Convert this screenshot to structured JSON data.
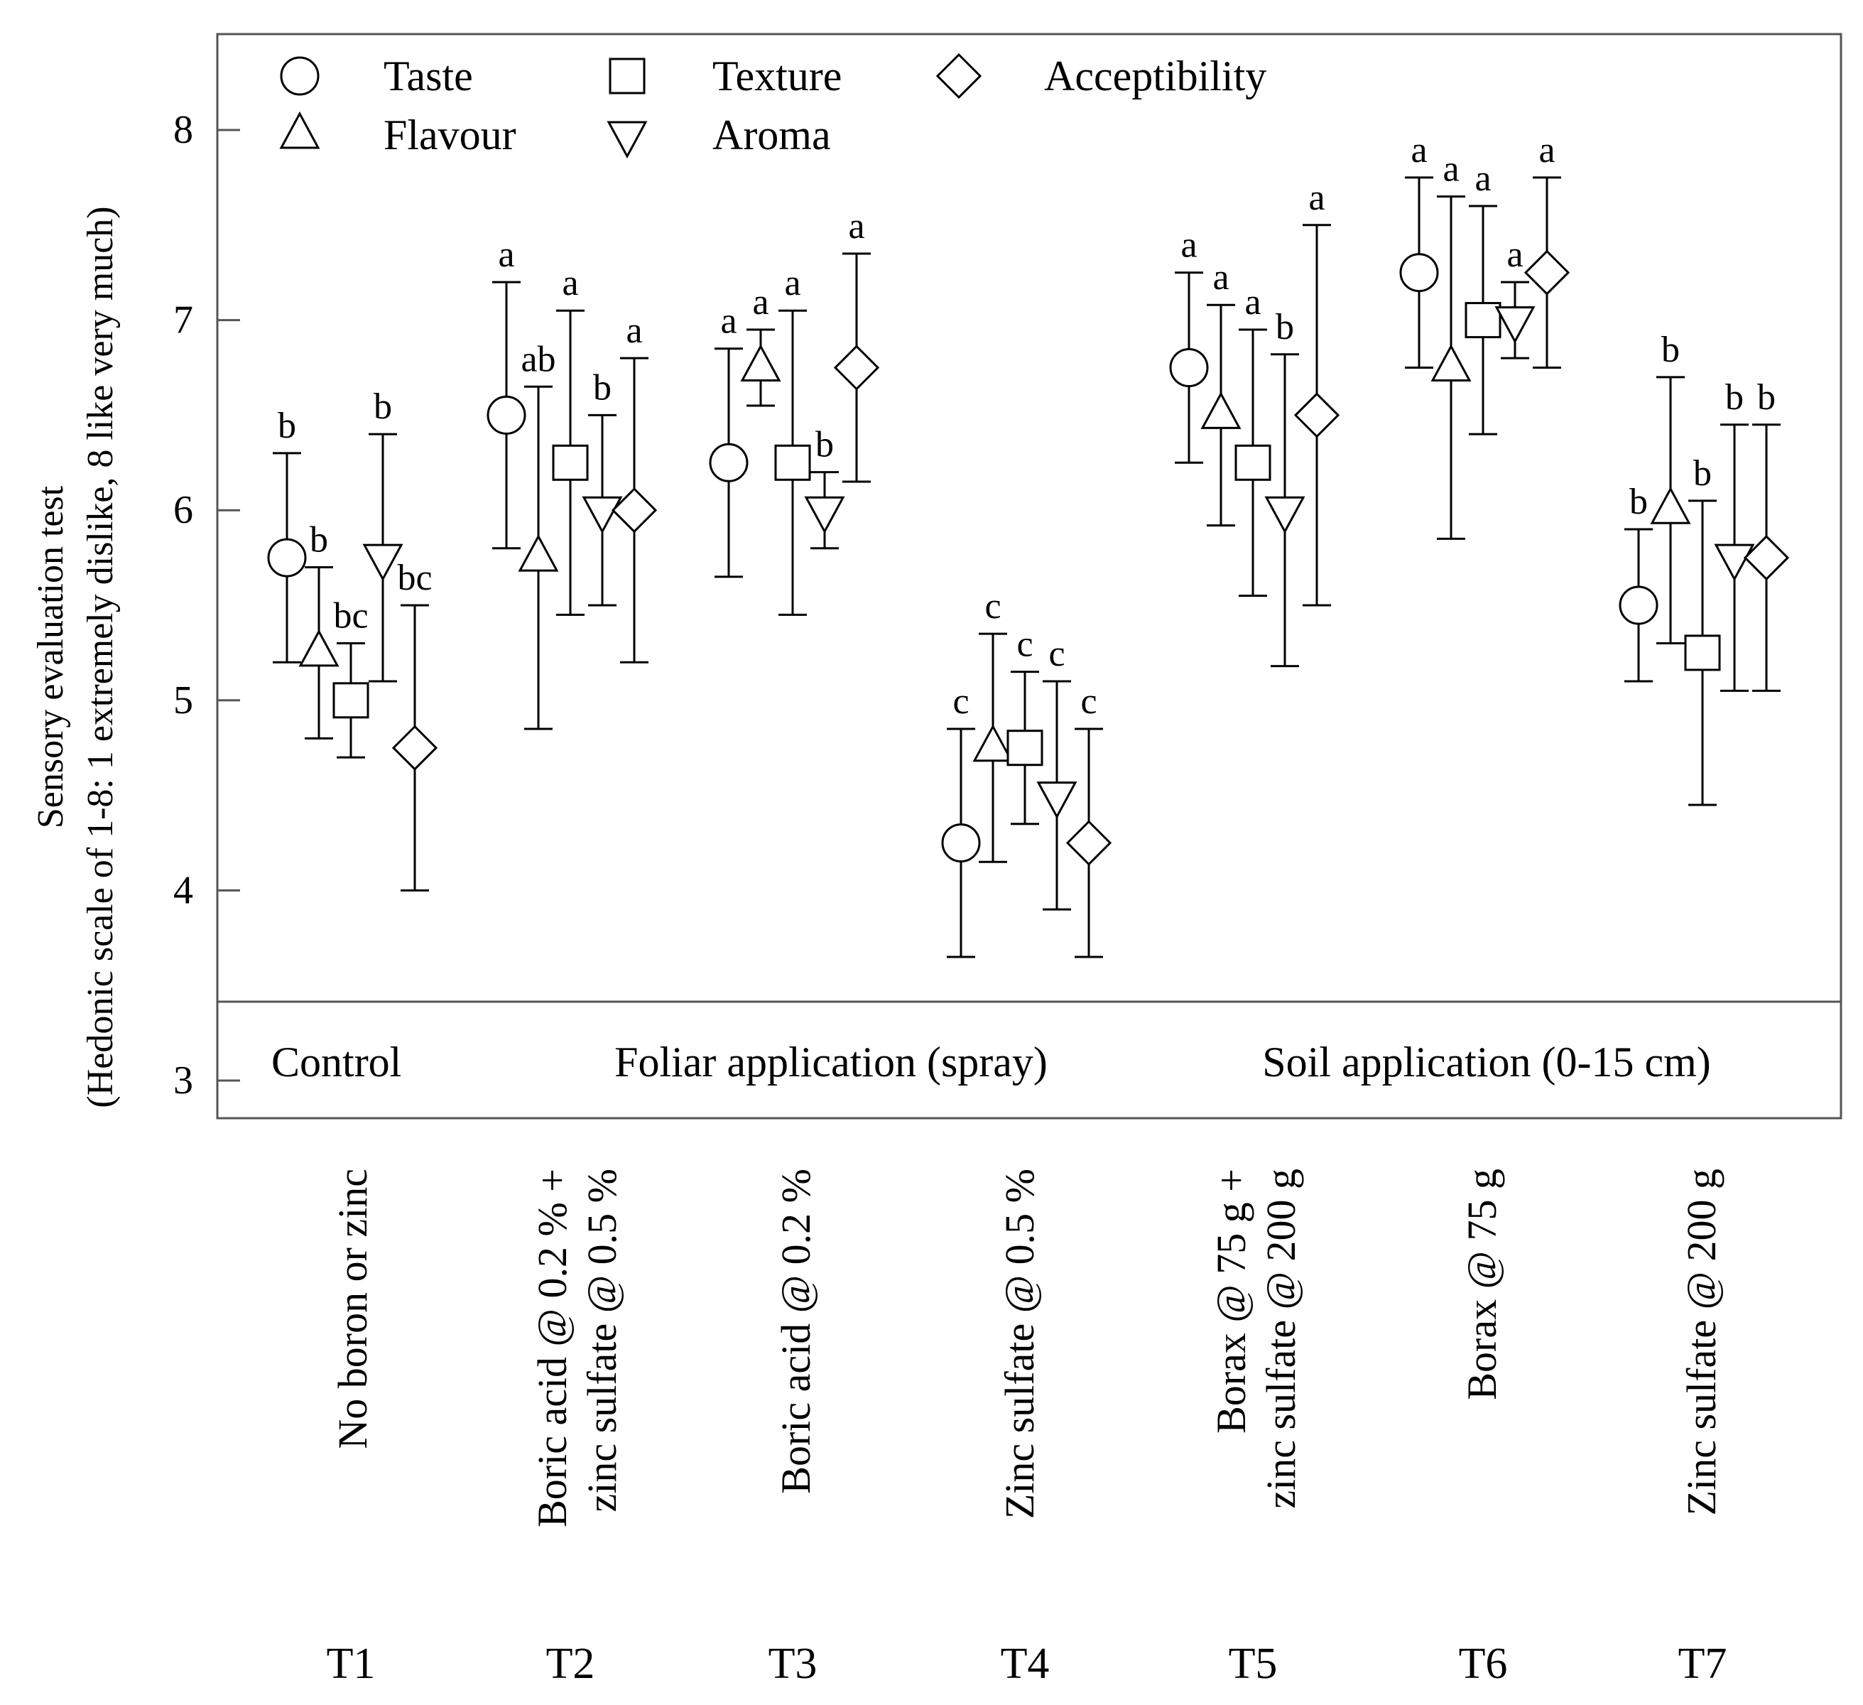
{
  "chart_data": {
    "type": "scatter",
    "subtype": "grouped point plot with error bars and significance letters",
    "ylabel_lines": [
      "Sensory evaluation test",
      "(Hedonic scale of 1-8: 1 extremely dislike, 8 like very much)"
    ],
    "ylim": [
      3.0,
      8.5
    ],
    "yticks": [
      3,
      4,
      5,
      6,
      7,
      8
    ],
    "legend_position": "top-left",
    "series": [
      {
        "name": "Taste",
        "marker": "circle"
      },
      {
        "name": "Flavour",
        "marker": "triangle-up"
      },
      {
        "name": "Texture",
        "marker": "square"
      },
      {
        "name": "Aroma",
        "marker": "triangle-down"
      },
      {
        "name": "Acceptibility",
        "marker": "diamond"
      }
    ],
    "groups": [
      {
        "text": "Control",
        "treatments": [
          "T1"
        ]
      },
      {
        "text": "Foliar application (spray)",
        "treatments": [
          "T2",
          "T3",
          "T4"
        ]
      },
      {
        "text": "Soil application (0-15 cm)",
        "treatments": [
          "T5",
          "T6",
          "T7"
        ]
      }
    ],
    "treatments": [
      {
        "id": "T1",
        "label_lines": [
          "No boron or zinc"
        ],
        "points": [
          {
            "mean": 5.75,
            "low": 5.2,
            "high": 6.3,
            "letter": "b"
          },
          {
            "mean": 5.25,
            "low": 4.8,
            "high": 5.7,
            "letter": "b"
          },
          {
            "mean": 5.0,
            "low": 4.7,
            "high": 5.3,
            "letter": "bc"
          },
          {
            "mean": 5.75,
            "low": 5.1,
            "high": 6.4,
            "letter": "b"
          },
          {
            "mean": 4.75,
            "low": 4.0,
            "high": 5.5,
            "letter": "bc"
          }
        ]
      },
      {
        "id": "T2",
        "label_lines": [
          "Boric acid @ 0.2 % +",
          "zinc sulfate @ 0.5 %"
        ],
        "points": [
          {
            "mean": 6.5,
            "low": 5.8,
            "high": 7.2,
            "letter": "a"
          },
          {
            "mean": 5.75,
            "low": 4.85,
            "high": 6.65,
            "letter": "ab"
          },
          {
            "mean": 6.25,
            "low": 5.45,
            "high": 7.05,
            "letter": "a"
          },
          {
            "mean": 6.0,
            "low": 5.5,
            "high": 6.5,
            "letter": "b"
          },
          {
            "mean": 6.0,
            "low": 5.2,
            "high": 6.8,
            "letter": "a"
          }
        ]
      },
      {
        "id": "T3",
        "label_lines": [
          "Boric acid @ 0.2 %"
        ],
        "points": [
          {
            "mean": 6.25,
            "low": 5.65,
            "high": 6.85,
            "letter": "a"
          },
          {
            "mean": 6.75,
            "low": 6.55,
            "high": 6.95,
            "letter": "a"
          },
          {
            "mean": 6.25,
            "low": 5.45,
            "high": 7.05,
            "letter": "a"
          },
          {
            "mean": 6.0,
            "low": 5.8,
            "high": 6.2,
            "letter": "b"
          },
          {
            "mean": 6.75,
            "low": 6.15,
            "high": 7.35,
            "letter": "a"
          }
        ]
      },
      {
        "id": "T4",
        "label_lines": [
          "Zinc sulfate @ 0.5 %"
        ],
        "points": [
          {
            "mean": 4.25,
            "low": 3.65,
            "high": 4.85,
            "letter": "c"
          },
          {
            "mean": 4.75,
            "low": 4.15,
            "high": 5.35,
            "letter": "c"
          },
          {
            "mean": 4.75,
            "low": 4.35,
            "high": 5.15,
            "letter": "c"
          },
          {
            "mean": 4.5,
            "low": 3.9,
            "high": 5.1,
            "letter": "c"
          },
          {
            "mean": 4.25,
            "low": 3.65,
            "high": 4.85,
            "letter": "c"
          }
        ]
      },
      {
        "id": "T5",
        "label_lines": [
          "Borax @ 75 g +",
          "zinc sulfate @ 200 g"
        ],
        "points": [
          {
            "mean": 6.75,
            "low": 6.25,
            "high": 7.25,
            "letter": "a"
          },
          {
            "mean": 6.5,
            "low": 5.92,
            "high": 7.08,
            "letter": "a"
          },
          {
            "mean": 6.25,
            "low": 5.55,
            "high": 6.95,
            "letter": "a"
          },
          {
            "mean": 6.0,
            "low": 5.18,
            "high": 6.82,
            "letter": "b"
          },
          {
            "mean": 6.5,
            "low": 5.5,
            "high": 7.5,
            "letter": "a"
          }
        ]
      },
      {
        "id": "T6",
        "label_lines": [
          "Borax @ 75 g"
        ],
        "points": [
          {
            "mean": 7.25,
            "low": 6.75,
            "high": 7.75,
            "letter": "a"
          },
          {
            "mean": 6.75,
            "low": 5.85,
            "high": 7.65,
            "letter": "a"
          },
          {
            "mean": 7.0,
            "low": 6.4,
            "high": 7.6,
            "letter": "a"
          },
          {
            "mean": 7.0,
            "low": 6.8,
            "high": 7.2,
            "letter": "a"
          },
          {
            "mean": 7.25,
            "low": 6.75,
            "high": 7.75,
            "letter": "a"
          }
        ]
      },
      {
        "id": "T7",
        "label_lines": [
          "Zinc sulfate @ 200 g"
        ],
        "points": [
          {
            "mean": 5.5,
            "low": 5.1,
            "high": 5.9,
            "letter": "b"
          },
          {
            "mean": 6.0,
            "low": 5.3,
            "high": 6.7,
            "letter": "b"
          },
          {
            "mean": 5.25,
            "low": 4.45,
            "high": 6.05,
            "letter": "b"
          },
          {
            "mean": 5.75,
            "low": 5.05,
            "high": 6.45,
            "letter": "b"
          },
          {
            "mean": 5.75,
            "low": 5.05,
            "high": 6.45,
            "letter": "b"
          }
        ]
      }
    ]
  }
}
